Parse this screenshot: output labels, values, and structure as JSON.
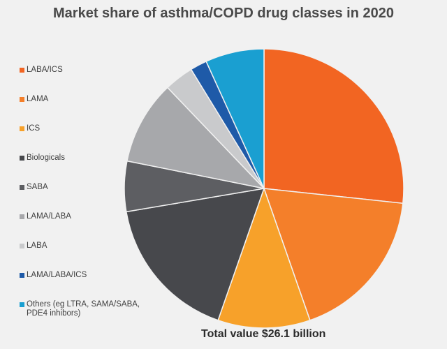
{
  "chart_data": {
    "type": "pie",
    "title": "Market share of asthma/COPD drug classes in 2020",
    "total_label": "Total value $26.1 billion",
    "slices": [
      {
        "label": "LABA/ICS",
        "value": 27.5,
        "color": "#f26522"
      },
      {
        "label": "LAMA",
        "value": 18.5,
        "color": "#f47f2a"
      },
      {
        "label": "ICS",
        "value": 11.0,
        "color": "#f7a12a"
      },
      {
        "label": "Biologicals",
        "value": 17.5,
        "color": "#47484c"
      },
      {
        "label": "SABA",
        "value": 6.0,
        "color": "#5d5e62"
      },
      {
        "label": "LAMA/LABA",
        "value": 10.0,
        "color": "#a7a8ab"
      },
      {
        "label": "LABA",
        "value": 3.5,
        "color": "#c9cacc"
      },
      {
        "label": "LAMA/LABA/ICS",
        "value": 2.0,
        "color": "#1e5aa8"
      },
      {
        "label": "Others (eg LTRA, SAMA/SABA,\nPDE4 inhibors)",
        "value": 7.0,
        "color": "#1a9fd1"
      }
    ],
    "legend_position": "left"
  }
}
